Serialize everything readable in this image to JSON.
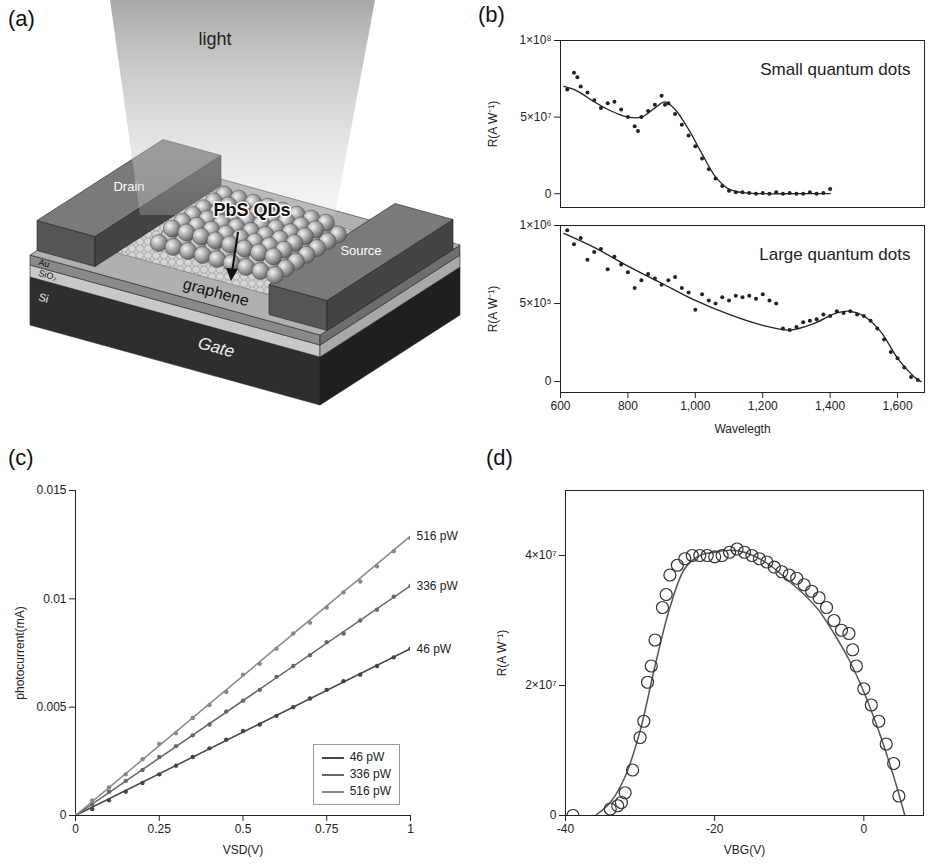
{
  "diagram": {
    "letter": "(a)",
    "labels": {
      "light": "light",
      "qds": "PbS QDs",
      "drain": "Drain",
      "source": "Source",
      "gate": "Gate",
      "graphene": "graphene",
      "au": "Au",
      "sio2": "SiO₂",
      "si": "Si"
    }
  },
  "chart_data": [
    {
      "type": "scatter",
      "title": "Small quantum dots",
      "annotations": [
        "(b)"
      ],
      "y_label": "R(A W⁻¹)",
      "xlim": [
        600,
        1680
      ],
      "ylim": [
        -9000000.0,
        100000000.0
      ],
      "yticks": [
        0,
        {
          "value": 50000000.0,
          "label": "5×10⁷"
        },
        {
          "value": 100000000.0,
          "label": "1×10⁸"
        }
      ],
      "tick_labels": "y",
      "color": "#222222",
      "marker": "dot",
      "x": [
        620,
        640,
        650,
        660,
        680,
        700,
        720,
        740,
        760,
        780,
        800,
        820,
        830,
        840,
        860,
        880,
        900,
        910,
        920,
        940,
        960,
        980,
        1000,
        1020,
        1040,
        1060,
        1080,
        1100,
        1120,
        1140,
        1160,
        1180,
        1200,
        1220,
        1240,
        1260,
        1280,
        1300,
        1320,
        1340,
        1360,
        1380,
        1400
      ],
      "values": [
        68000000.0,
        79000000.0,
        76000000.0,
        70000000.0,
        66000000.0,
        61000000.0,
        56000000.0,
        59000000.0,
        60000000.0,
        55000000.0,
        50000000.0,
        44000000.0,
        41000000.0,
        50000000.0,
        54000000.0,
        58000000.0,
        64000000.0,
        58000000.0,
        59000000.0,
        52000000.0,
        45000000.0,
        38000000.0,
        31000000.0,
        23000000.0,
        16000000.0,
        10000000.0,
        5000000.0,
        2000000.0,
        1000000.0,
        1000000.0,
        500000.0,
        0,
        500000.0,
        0,
        1000000.0,
        0,
        500000.0,
        0,
        0,
        1000000.0,
        0,
        500000.0,
        3000000.0
      ],
      "fit": {
        "x": [
          610,
          650,
          700,
          750,
          800,
          840,
          880,
          910,
          940,
          980,
          1020,
          1060,
          1100,
          1150,
          1200,
          1300,
          1400
        ],
        "values": [
          70000000.0,
          67000000.0,
          60000000.0,
          54000000.0,
          50000000.0,
          50000000.0,
          56000000.0,
          60000000.0,
          55000000.0,
          42000000.0,
          26000000.0,
          11000000.0,
          3000000.0,
          500000.0,
          0,
          0,
          0
        ]
      }
    },
    {
      "type": "scatter",
      "title": "Large quantum dots",
      "x_label": "Wavelegth",
      "y_label": "R(A W⁻¹)",
      "xlim": [
        600,
        1680
      ],
      "ylim": [
        -70000.0,
        1000000.0
      ],
      "xticks": [
        600,
        800,
        {
          "value": 1000,
          "label": "1,000"
        },
        {
          "value": 1200,
          "label": "1,200"
        },
        {
          "value": 1400,
          "label": "1,400"
        },
        {
          "value": 1600,
          "label": "1,600"
        }
      ],
      "yticks": [
        0,
        {
          "value": 500000.0,
          "label": "5×10⁵"
        },
        {
          "value": 1000000.0,
          "label": "1×10⁶"
        }
      ],
      "color": "#222222",
      "marker": "dot",
      "x": [
        620,
        640,
        660,
        680,
        700,
        720,
        740,
        760,
        780,
        800,
        820,
        840,
        860,
        880,
        900,
        920,
        940,
        960,
        980,
        1000,
        1020,
        1040,
        1060,
        1080,
        1100,
        1120,
        1140,
        1160,
        1180,
        1200,
        1220,
        1240,
        1260,
        1280,
        1300,
        1320,
        1340,
        1360,
        1380,
        1400,
        1420,
        1440,
        1460,
        1480,
        1500,
        1520,
        1540,
        1560,
        1580,
        1600,
        1620,
        1640,
        1660
      ],
      "values": [
        970000.0,
        880000.0,
        920000.0,
        780000.0,
        830000.0,
        850000.0,
        720000.0,
        800000.0,
        750000.0,
        700000.0,
        600000.0,
        650000.0,
        690000.0,
        660000.0,
        620000.0,
        650000.0,
        670000.0,
        600000.0,
        570000.0,
        460000.0,
        560000.0,
        520000.0,
        500000.0,
        540000.0,
        520000.0,
        550000.0,
        540000.0,
        550000.0,
        530000.0,
        560000.0,
        520000.0,
        500000.0,
        340000.0,
        330000.0,
        350000.0,
        380000.0,
        390000.0,
        400000.0,
        430000.0,
        420000.0,
        450000.0,
        440000.0,
        450000.0,
        430000.0,
        420000.0,
        390000.0,
        340000.0,
        270000.0,
        190000.0,
        150000.0,
        90000.0,
        30000.0,
        10000.0
      ],
      "fit": {
        "x": [
          610,
          700,
          800,
          900,
          1000,
          1100,
          1200,
          1280,
          1350,
          1420,
          1460,
          1500,
          1550,
          1600,
          1650,
          1670
        ],
        "values": [
          950000.0,
          860000.0,
          740000.0,
          630000.0,
          520000.0,
          430000.0,
          360000.0,
          330000.0,
          370000.0,
          440000.0,
          450000.0,
          420000.0,
          320000.0,
          150000.0,
          30000.0,
          0
        ]
      }
    },
    {
      "type": "line",
      "annotations": [
        "(c)"
      ],
      "x_label": "VSD(V)",
      "y_label": "photocurrent(mA)",
      "xlim": [
        0,
        1
      ],
      "ylim": [
        0,
        0.015
      ],
      "xticks": [
        0,
        0.25,
        0.5,
        0.75,
        1
      ],
      "yticks": [
        0,
        0.005,
        0.01,
        0.015
      ],
      "legend": "bottom-right",
      "x": [
        0,
        0.05,
        0.1,
        0.15,
        0.2,
        0.25,
        0.3,
        0.35,
        0.4,
        0.45,
        0.5,
        0.55,
        0.6,
        0.65,
        0.7,
        0.75,
        0.8,
        0.85,
        0.9,
        0.95,
        1
      ],
      "series": [
        {
          "name": "46 pW",
          "color": "#444444",
          "marker": "dot",
          "line_style": "solid",
          "values": [
            0,
            0.0003,
            0.0007,
            0.0011,
            0.0015,
            0.0019,
            0.0023,
            0.0027,
            0.0031,
            0.0035,
            0.0039,
            0.0042,
            0.0046,
            0.005,
            0.0054,
            0.0058,
            0.0062,
            0.0065,
            0.0069,
            0.0073,
            0.0077
          ],
          "fit": {
            "x": [
              0,
              1
            ],
            "values": [
              0,
              0.0077
            ]
          }
        },
        {
          "name": "336 pW",
          "color": "#666666",
          "marker": "dot",
          "line_style": "solid",
          "values": [
            0,
            0.0005,
            0.0011,
            0.0016,
            0.0021,
            0.0027,
            0.0032,
            0.0037,
            0.0042,
            0.0048,
            0.0053,
            0.0058,
            0.0064,
            0.0069,
            0.0074,
            0.008,
            0.0084,
            0.009,
            0.0095,
            0.0101,
            0.0106
          ],
          "fit": {
            "x": [
              0,
              1
            ],
            "values": [
              0,
              0.0106
            ]
          }
        },
        {
          "name": "516 pW",
          "color": "#888888",
          "marker": "dot",
          "line_style": "solid",
          "values": [
            0,
            0.0007,
            0.0013,
            0.0019,
            0.0026,
            0.0033,
            0.0038,
            0.0045,
            0.0051,
            0.0057,
            0.0065,
            0.007,
            0.0077,
            0.0084,
            0.0089,
            0.0096,
            0.0103,
            0.0108,
            0.0115,
            0.0122,
            0.0128
          ],
          "fit": {
            "x": [
              0,
              1
            ],
            "values": [
              0,
              0.0129
            ]
          }
        }
      ]
    },
    {
      "type": "scatter",
      "annotations": [
        "(d)"
      ],
      "x_label": "VBG(V)",
      "y_label": "R(A W⁻¹)",
      "xlim": [
        -40,
        8
      ],
      "ylim": [
        0,
        50000000.0
      ],
      "xticks": [
        -40,
        -20,
        0
      ],
      "yticks": [
        0,
        {
          "value": 20000000.0,
          "label": "2×10⁷"
        },
        {
          "value": 40000000.0,
          "label": "4×10⁷"
        }
      ],
      "color": "#333333",
      "marker": "circle",
      "x": [
        -39,
        -34,
        -33,
        -32.5,
        -32,
        -31,
        -30,
        -29.5,
        -29,
        -28.5,
        -28,
        -27,
        -26.5,
        -26,
        -25,
        -24,
        -23,
        -22,
        -21,
        -20,
        -19,
        -18,
        -17,
        -16,
        -15,
        -14,
        -13,
        -12,
        -11,
        -10,
        -9,
        -8,
        -7,
        -6,
        -5,
        -4,
        -3,
        -2,
        -1.5,
        -1,
        0,
        1,
        2,
        3,
        4,
        4.7
      ],
      "values": [
        0,
        1000000.0,
        1500000.0,
        2000000.0,
        3500000.0,
        7000000.0,
        12000000.0,
        14500000.0,
        20500000.0,
        23000000.0,
        27000000.0,
        32000000.0,
        34000000.0,
        37000000.0,
        38500000.0,
        39500000.0,
        40000000.0,
        40000000.0,
        40000000.0,
        39800000.0,
        40000000.0,
        40500000.0,
        41000000.0,
        40500000.0,
        40000000.0,
        39500000.0,
        39000000.0,
        38200000.0,
        37500000.0,
        37000000.0,
        36500000.0,
        35500000.0,
        34500000.0,
        33500000.0,
        32000000.0,
        30000000.0,
        28500000.0,
        28000000.0,
        25500000.0,
        23000000.0,
        19500000.0,
        17000000.0,
        14500000.0,
        11000000.0,
        8000000.0,
        3000000.0
      ],
      "fit": {
        "x": [
          -36,
          -34,
          -32,
          -30,
          -28,
          -26,
          -24,
          -22,
          -20,
          -18,
          -16,
          -14,
          -12,
          -10,
          -8,
          -6,
          -4,
          -2,
          0,
          2,
          4,
          5.5
        ],
        "values": [
          0,
          2000000.0,
          6000000.0,
          13000000.0,
          23000000.0,
          32000000.0,
          38000000.0,
          40000000.0,
          40500000.0,
          40800000.0,
          40500000.0,
          39500000.0,
          38000000.0,
          36000000.0,
          34000000.0,
          31500000.0,
          28000000.0,
          24000000.0,
          19000000.0,
          13000000.0,
          6000000.0,
          0
        ]
      }
    }
  ]
}
